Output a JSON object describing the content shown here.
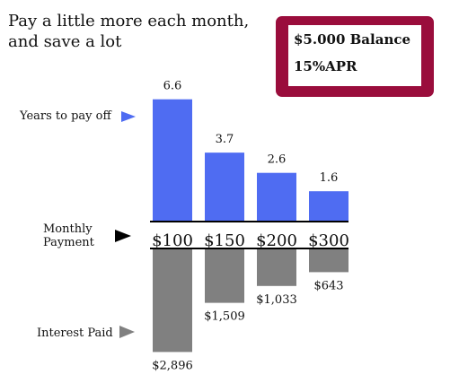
{
  "title_lines": [
    "Pay a little more each month,",
    "and save a lot"
  ],
  "infobox": {
    "balance": "$5.000 Balance",
    "apr": "15%APR",
    "border_color": "#9a0d3c"
  },
  "row_labels": {
    "years": "Years to pay off",
    "payment": [
      "Monthly",
      "Payment"
    ],
    "interest": "Interest Paid"
  },
  "chart_data": {
    "type": "bar",
    "title": "",
    "categories": [
      "$100",
      "$150",
      "$200",
      "$300"
    ],
    "series": [
      {
        "name": "Years to pay off",
        "values": [
          6.6,
          3.7,
          2.6,
          1.6
        ],
        "labels": [
          "6.6",
          "3.7",
          "2.6",
          "1.6"
        ],
        "color": "#4f6cf2",
        "direction": "up"
      },
      {
        "name": "Interest Paid",
        "values": [
          2896,
          1509,
          1033,
          643
        ],
        "labels": [
          "$2,896",
          "$1,509",
          "$1,033",
          "$643"
        ],
        "color": "#808080",
        "direction": "down"
      }
    ],
    "xlabel": "",
    "ylabel": "",
    "grid": false,
    "legend": "none"
  }
}
